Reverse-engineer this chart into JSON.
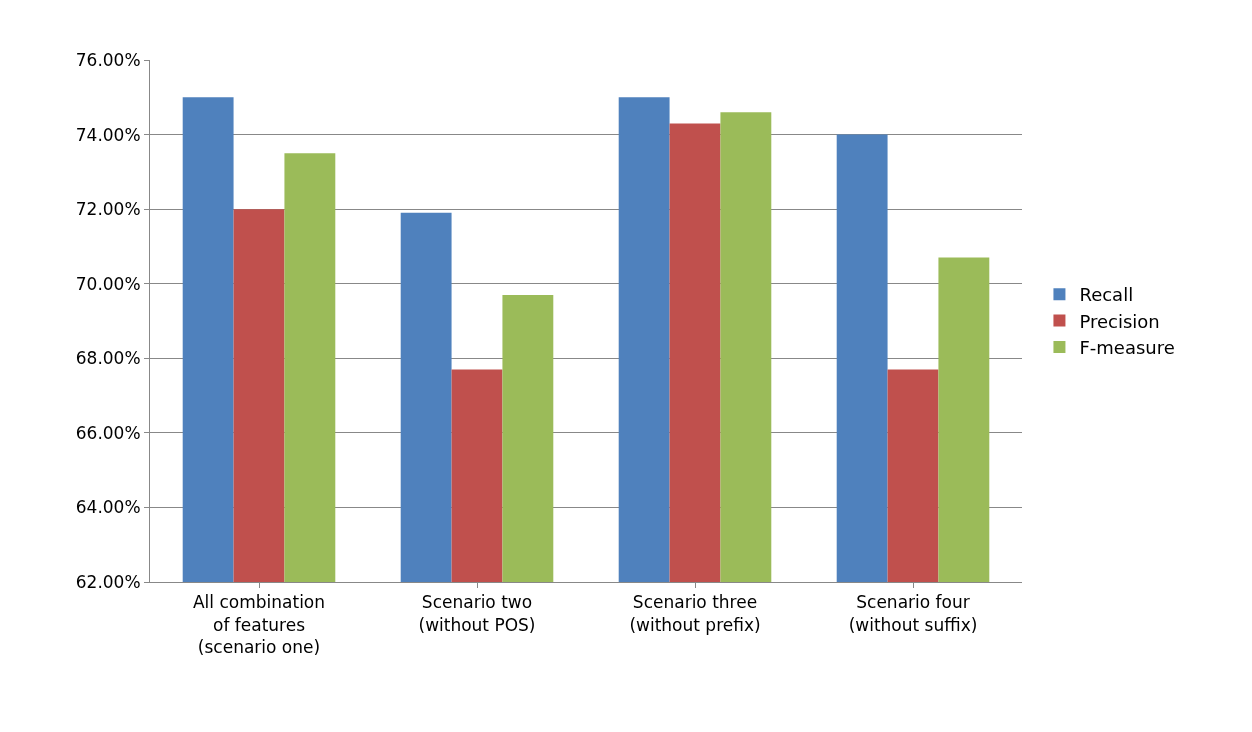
{
  "chart_data": {
    "type": "bar",
    "categories": [
      "All combination\nof features\n(scenario one)",
      "Scenario two\n(without POS)",
      "Scenario three\n(without prefix)",
      "Scenario four\n(without suffix)"
    ],
    "series": [
      {
        "name": "Recall",
        "color": "#4f81bd",
        "values": [
          75.0,
          71.9,
          75.0,
          74.0
        ]
      },
      {
        "name": "Precision",
        "color": "#c0504d",
        "values": [
          72.0,
          67.7,
          74.3,
          67.7
        ]
      },
      {
        "name": "F-measure",
        "color": "#9bbb59",
        "values": [
          73.5,
          69.7,
          74.6,
          70.7
        ]
      }
    ],
    "ylim": [
      62,
      76
    ],
    "yticks": [
      {
        "value": 62,
        "label": "62.00%"
      },
      {
        "value": 64,
        "label": "64.00%"
      },
      {
        "value": 66,
        "label": "66.00%"
      },
      {
        "value": 68,
        "label": "68.00%"
      },
      {
        "value": 70,
        "label": "70.00%"
      },
      {
        "value": 72,
        "label": "72.00%"
      },
      {
        "value": 74,
        "label": "74.00%"
      },
      {
        "value": 76,
        "label": "76.00%"
      }
    ],
    "grid": "y",
    "legend": "right"
  }
}
